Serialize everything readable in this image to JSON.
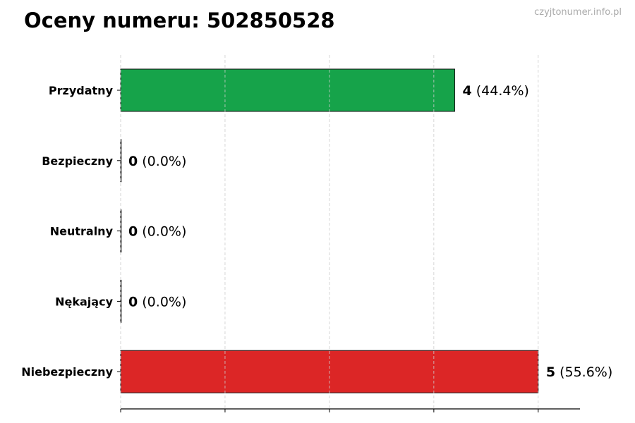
{
  "chart_data": {
    "type": "bar",
    "orientation": "horizontal",
    "title": "Oceny numeru: 502850528",
    "categories": [
      "Przydatny",
      "Bezpieczny",
      "Neutralny",
      "Nękający",
      "Niebezpieczny"
    ],
    "values": [
      4,
      0,
      0,
      0,
      5
    ],
    "percent_labels": [
      "(44.4%)",
      "(0.0%)",
      "(0.0%)",
      "(0.0%)",
      "(55.6%)"
    ],
    "colors": [
      "#16a34a",
      "#16a34a",
      "#9ca3af",
      "#dc2626",
      "#dc2626"
    ],
    "xlim": [
      0,
      5.5
    ],
    "xticks": [
      0,
      1.25,
      2.5,
      3.75,
      5
    ],
    "xtick_labels_shown": false,
    "grid": "vertical dashed",
    "xlabel": "",
    "ylabel": ""
  },
  "watermark": "czyjtonumer.info.pl"
}
